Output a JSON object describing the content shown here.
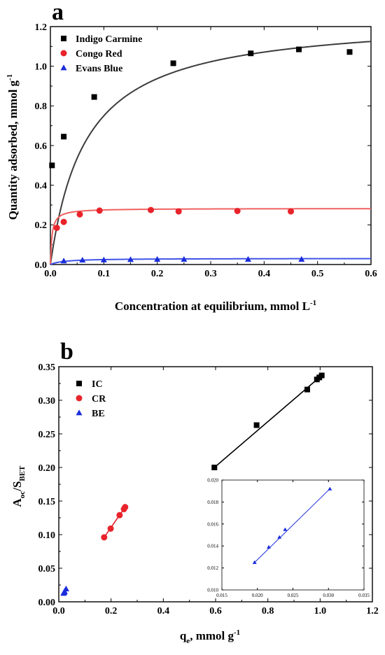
{
  "panels": [
    {
      "letter": "a",
      "xlabel": "Concentration at equilibrium, mmol L",
      "xlabel_sup": "-1",
      "ylabel": "Quantity adsorbed, mmol g",
      "ylabel_sup": "-1"
    },
    {
      "letter": "b",
      "xlabel_main": "q",
      "xlabel_sub": "e",
      "xlabel_rest": ", mmol g",
      "xlabel_sup": "-1",
      "ylabel_A": "A",
      "ylabel_oc": "oc",
      "ylabel_slash": "/S",
      "ylabel_bet": "BET"
    }
  ],
  "chart_data": [
    {
      "type": "scatter",
      "title": "",
      "xlim": [
        0,
        0.6
      ],
      "ylim": [
        0,
        1.2
      ],
      "xticks": [
        "0.0",
        "0.1",
        "0.2",
        "0.3",
        "0.4",
        "0.5",
        "0.6"
      ],
      "yticks": [
        "0.0",
        "0.2",
        "0.4",
        "0.6",
        "0.8",
        "1.0",
        "1.2"
      ],
      "legend_position": "top-left",
      "grid": false,
      "series": [
        {
          "name": "Indigo Carmine",
          "marker": "square",
          "color": "#000000",
          "fit_color": "#3c3c3c",
          "x": [
            0.003,
            0.025,
            0.082,
            0.23,
            0.375,
            0.465,
            0.56
          ],
          "y": [
            0.5,
            0.645,
            0.845,
            1.015,
            1.065,
            1.085,
            1.072
          ],
          "fit": {
            "model": "langmuir",
            "qmax": 1.25,
            "K": 15
          }
        },
        {
          "name": "Congo Red",
          "marker": "circle",
          "color": "#e8232b",
          "fit_color": "#f06060",
          "x": [
            0.012,
            0.025,
            0.055,
            0.092,
            0.188,
            0.24,
            0.35,
            0.45
          ],
          "y": [
            0.185,
            0.215,
            0.253,
            0.272,
            0.275,
            0.268,
            0.27,
            0.268
          ],
          "fit": {
            "model": "langmuir",
            "qmax": 0.283,
            "K": 350
          }
        },
        {
          "name": "Evans Blue",
          "marker": "triangle",
          "color": "#1a2ddb",
          "fit_color": "#3f53e8",
          "x": [
            0.025,
            0.06,
            0.1,
            0.15,
            0.2,
            0.25,
            0.37,
            0.47
          ],
          "y": [
            0.018,
            0.022,
            0.023,
            0.025,
            0.026,
            0.026,
            0.026,
            0.026
          ],
          "fit": {
            "model": "langmuir",
            "qmax": 0.031,
            "K": 40
          }
        }
      ]
    },
    {
      "type": "scatter",
      "title": "",
      "xlim": [
        0,
        1.3
      ],
      "ylim": [
        0,
        0.35
      ],
      "xticks": [
        "0.0",
        "0.2",
        "0.4",
        "0.6",
        "0.8",
        "1.0",
        "1.2"
      ],
      "yticks": [
        "0.00",
        "0.05",
        "0.10",
        "0.15",
        "0.20",
        "0.25",
        "0.30",
        "0.35"
      ],
      "legend_position": "top-left",
      "grid": false,
      "series": [
        {
          "name": "IC",
          "marker": "square",
          "color": "#000000",
          "x": [
            0.645,
            0.82,
            1.03,
            1.07,
            1.08,
            1.09
          ],
          "y": [
            0.2,
            0.263,
            0.316,
            0.331,
            0.334,
            0.337
          ]
        },
        {
          "name": "CR",
          "marker": "circle",
          "color": "#e8232b",
          "x": [
            0.188,
            0.215,
            0.252,
            0.27,
            0.275
          ],
          "y": [
            0.096,
            0.109,
            0.129,
            0.138,
            0.141
          ]
        },
        {
          "name": "BE",
          "marker": "triangle",
          "color": "#1a2ddb",
          "x": [
            0.0196,
            0.0216,
            0.0231,
            0.0239,
            0.0302
          ],
          "y": [
            0.0125,
            0.0139,
            0.0148,
            0.0155,
            0.0192
          ]
        }
      ],
      "inset": {
        "xlim": [
          0.015,
          0.035
        ],
        "ylim": [
          0.01,
          0.02
        ],
        "xticks": [
          "0.015",
          "0.020",
          "0.025",
          "0.030",
          "0.035"
        ],
        "yticks": [
          "0.010",
          "0.012",
          "0.014",
          "0.016",
          "0.018",
          "0.020"
        ],
        "series_name": "BE",
        "color": "#1a2ddb",
        "x": [
          0.0196,
          0.0216,
          0.0231,
          0.0239,
          0.0302
        ],
        "y": [
          0.0125,
          0.0139,
          0.0148,
          0.0155,
          0.0192
        ]
      }
    }
  ]
}
